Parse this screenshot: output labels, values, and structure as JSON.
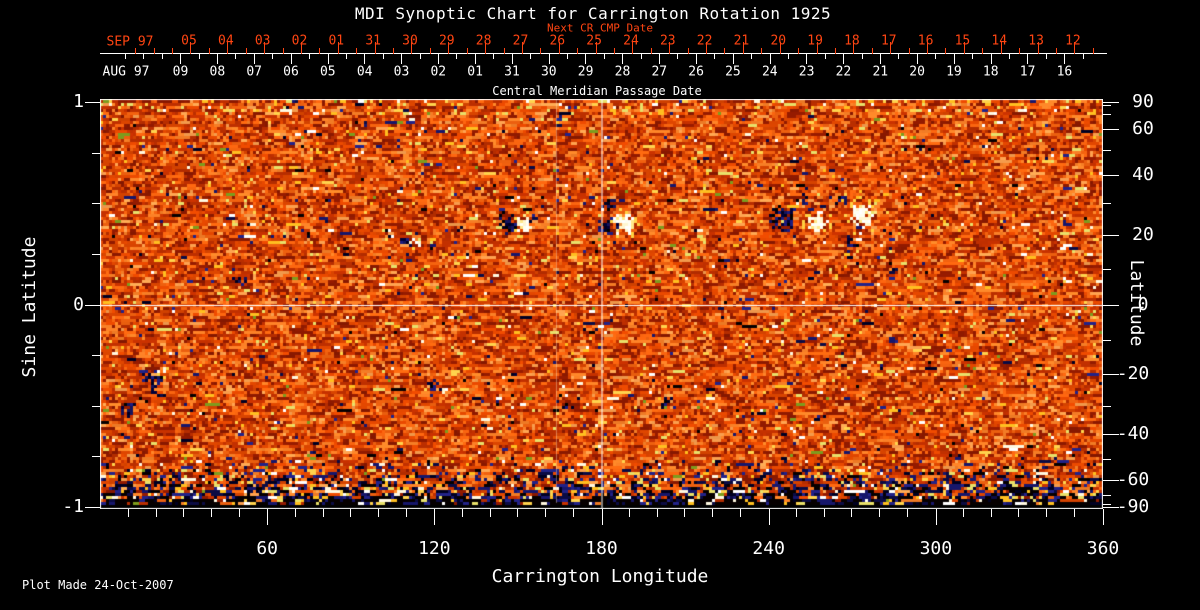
{
  "title": "MDI Synoptic Chart for Carrington Rotation 1925",
  "footer": "Plot Made 24-Oct-2007",
  "colors": {
    "background": "#000000",
    "foreground": "#ffffff",
    "accent_red": "#ff4512",
    "plot_base_orange": "#e14700",
    "negative_field": "#10104c",
    "positive_field": "#ffffff"
  },
  "top_axes": {
    "next_cr_label": "Next CR CMP Date",
    "cmp_label": "Central Meridian Passage Date",
    "red_month": "SEP 97",
    "white_month": "AUG 97",
    "red_dates": [
      "05",
      "04",
      "03",
      "02",
      "01",
      "31",
      "30",
      "29",
      "28",
      "27",
      "26",
      "25",
      "24",
      "23",
      "22",
      "21",
      "20",
      "19",
      "18",
      "17",
      "16",
      "15",
      "14",
      "13",
      "12"
    ],
    "white_dates": [
      "09",
      "08",
      "07",
      "06",
      "05",
      "04",
      "03",
      "02",
      "01",
      "31",
      "30",
      "29",
      "28",
      "27",
      "26",
      "25",
      "24",
      "23",
      "22",
      "21",
      "20",
      "19",
      "18",
      "17",
      "16"
    ]
  },
  "x_axis": {
    "label": "Carrington Longitude",
    "range": [
      0,
      360
    ],
    "major_ticks": [
      60,
      120,
      180,
      240,
      300,
      360
    ],
    "minor_step": 10
  },
  "y_axis_left": {
    "label": "Sine Latitude",
    "range": [
      -1,
      1
    ],
    "major_ticks": [
      1,
      0,
      -1
    ],
    "minor_step": 0.25
  },
  "y_axis_right": {
    "label": "Latitude",
    "major_ticks": [
      90,
      60,
      40,
      20,
      0,
      -20,
      -40,
      -60,
      -90
    ],
    "minor_ticks": [
      80,
      70,
      50,
      30,
      10,
      -10,
      -30,
      -50,
      -70,
      -80
    ]
  },
  "chart_data": {
    "type": "heatmap",
    "title": "MDI Synoptic Chart for Carrington Rotation 1925",
    "xlabel": "Carrington Longitude",
    "x_range": [
      0,
      360
    ],
    "ylabel_left": "Sine Latitude",
    "y_range_sine": [
      -1,
      1
    ],
    "ylabel_right": "Latitude",
    "y_range_latitude": [
      -90,
      90
    ],
    "legend_position": "none",
    "grid": "crosshair-only",
    "crosshair": {
      "longitude": 180,
      "sine_latitude": 0
    },
    "description": "Full-rotation synoptic magnetogram: mottled orange/red quiet-sun noise, dark navy negative-polarity and white/yellow positive-polarity active regions, heavily speckled dark band near the south pole (sine latitude below about -0.75).",
    "cmp_dates_aug97": [
      "09",
      "08",
      "07",
      "06",
      "05",
      "04",
      "03",
      "02",
      "01",
      "31",
      "30",
      "29",
      "28",
      "27",
      "26",
      "25",
      "24",
      "23",
      "22",
      "21",
      "20",
      "19",
      "18",
      "17",
      "16"
    ],
    "next_cr_cmp_dates_sep97": [
      "05",
      "04",
      "03",
      "02",
      "01",
      "31",
      "30",
      "29",
      "28",
      "27",
      "26",
      "25",
      "24",
      "23",
      "22",
      "21",
      "20",
      "19",
      "18",
      "17",
      "16",
      "15",
      "14",
      "13",
      "12"
    ],
    "active_regions": [
      {
        "lon": 146.2,
        "lat": 24.8,
        "w": 3.9,
        "h": 0.059,
        "pol": -1,
        "d": 0.8
      },
      {
        "lon": 151.9,
        "lat": 23.9,
        "w": 3.2,
        "h": 0.054,
        "pol": 1,
        "d": 0.8
      },
      {
        "lon": 182.0,
        "lat": 30.3,
        "w": 2.9,
        "h": 0.03,
        "pol": -1,
        "d": 0.45
      },
      {
        "lon": 181.6,
        "lat": 23.3,
        "w": 3.9,
        "h": 0.054,
        "pol": -1,
        "d": 0.8
      },
      {
        "lon": 188.1,
        "lat": 23.9,
        "w": 4.3,
        "h": 0.059,
        "pol": 1,
        "d": 0.8
      },
      {
        "lon": 244.7,
        "lat": 26.1,
        "w": 5.7,
        "h": 0.069,
        "pol": -1,
        "d": 0.75
      },
      {
        "lon": 250.8,
        "lat": 30.9,
        "w": 3.6,
        "h": 0.04,
        "pol": -1,
        "d": 0.45
      },
      {
        "lon": 256.9,
        "lat": 25.1,
        "w": 4.7,
        "h": 0.049,
        "pol": 1,
        "d": 0.8
      },
      {
        "lon": 263.7,
        "lat": 32.2,
        "w": 4.3,
        "h": 0.035,
        "pol": -1,
        "d": 0.4
      },
      {
        "lon": 273.0,
        "lat": 26.1,
        "w": 4.7,
        "h": 0.084,
        "pol": 1,
        "d": 0.75
      },
      {
        "lon": 281.9,
        "lat": 22.1,
        "w": 2.9,
        "h": 0.049,
        "pol": -1,
        "d": 0.45
      },
      {
        "lon": 269.7,
        "lat": 18.4,
        "w": 3.6,
        "h": 0.025,
        "pol": -1,
        "d": 0.4
      },
      {
        "lon": 108.9,
        "lat": 19.3,
        "w": 2.5,
        "h": 0.03,
        "pol": -1,
        "d": 0.7
      },
      {
        "lon": 113.2,
        "lat": 18.4,
        "w": 2.2,
        "h": 0.025,
        "pol": 1,
        "d": 0.7
      },
      {
        "lon": 74.2,
        "lat": 20.5,
        "w": 1.4,
        "h": 0.02,
        "pol": -1,
        "d": 0.7
      },
      {
        "lon": 50.1,
        "lat": 7.7,
        "w": 2.9,
        "h": 0.035,
        "pol": -1,
        "d": 0.45
      },
      {
        "lon": 18.6,
        "lat": -21.5,
        "w": 4.3,
        "h": 0.069,
        "pol": -1,
        "d": 0.7
      },
      {
        "lon": 22.6,
        "lat": -18.7,
        "w": 2.2,
        "h": 0.025,
        "pol": 1,
        "d": 0.5
      },
      {
        "lon": 9.7,
        "lat": -30.6,
        "w": 3.2,
        "h": 0.04,
        "pol": -1,
        "d": 0.6
      },
      {
        "lon": 119.3,
        "lat": -23.0,
        "w": 2.9,
        "h": 0.035,
        "pol": -1,
        "d": 0.65
      },
      {
        "lon": 123.6,
        "lat": -24.5,
        "w": 2.2,
        "h": 0.025,
        "pol": 1,
        "d": 0.6
      },
      {
        "lon": 164.8,
        "lat": -29.0,
        "w": 4.3,
        "h": 0.044,
        "pol": -1,
        "d": 0.5
      },
      {
        "lon": 168.4,
        "lat": -26.7,
        "w": 1.8,
        "h": 0.02,
        "pol": 1,
        "d": 0.6
      },
      {
        "lon": 203.1,
        "lat": -28.7,
        "w": 3.2,
        "h": 0.03,
        "pol": -1,
        "d": 0.4
      },
      {
        "lon": 148.0,
        "lat": -19.6,
        "w": 1.4,
        "h": 0.015,
        "pol": -1,
        "d": 0.6
      }
    ]
  }
}
